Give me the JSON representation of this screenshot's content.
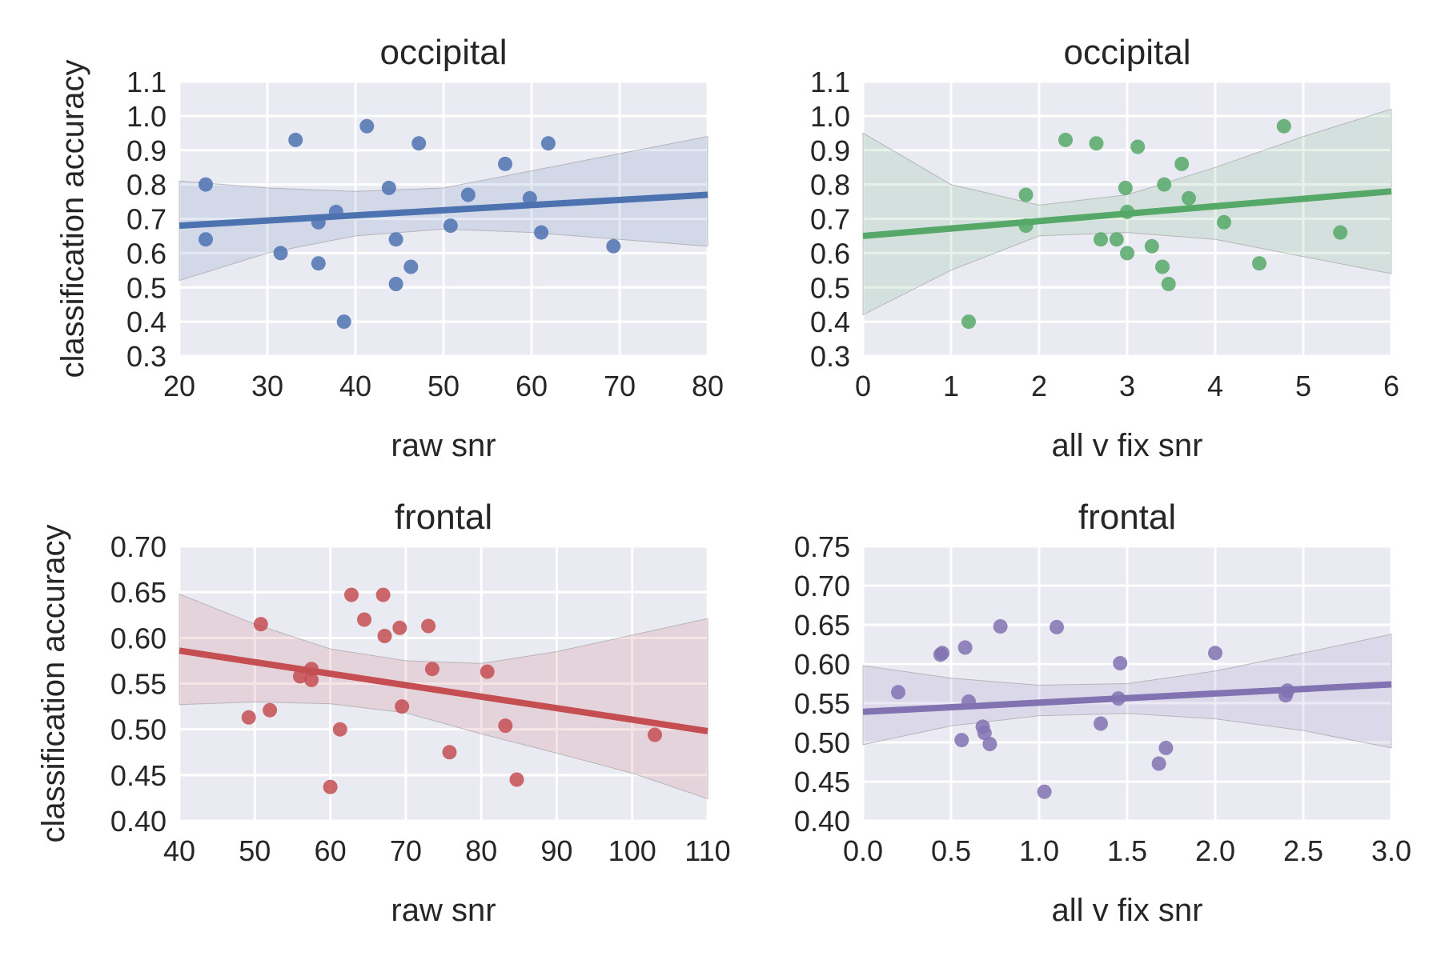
{
  "chart_data": [
    {
      "type": "scatter",
      "title": "occipital",
      "xlabel": "raw snr",
      "ylabel": "classification accuracy",
      "xlim": [
        20,
        80
      ],
      "ylim": [
        0.3,
        1.1
      ],
      "xticks": [
        "20",
        "30",
        "40",
        "50",
        "60",
        "70",
        "80"
      ],
      "yticks": [
        "0.3",
        "0.4",
        "0.5",
        "0.6",
        "0.7",
        "0.8",
        "0.9",
        "1.0",
        "1.1"
      ],
      "grid": true,
      "color": "#4C72B0",
      "points": [
        [
          23.0,
          0.8
        ],
        [
          23.0,
          0.64
        ],
        [
          31.5,
          0.6
        ],
        [
          33.2,
          0.93
        ],
        [
          35.8,
          0.57
        ],
        [
          35.8,
          0.69
        ],
        [
          37.8,
          0.72
        ],
        [
          38.7,
          0.4
        ],
        [
          41.3,
          0.97
        ],
        [
          43.8,
          0.79
        ],
        [
          44.6,
          0.64
        ],
        [
          44.6,
          0.51
        ],
        [
          46.3,
          0.56
        ],
        [
          47.2,
          0.92
        ],
        [
          50.8,
          0.68
        ],
        [
          52.8,
          0.77
        ],
        [
          57.0,
          0.86
        ],
        [
          59.8,
          0.76
        ],
        [
          61.1,
          0.66
        ],
        [
          61.9,
          0.92
        ],
        [
          69.3,
          0.62
        ]
      ],
      "fit_line": [
        [
          20,
          0.68
        ],
        [
          80,
          0.77
        ]
      ],
      "band": {
        "x": [
          20,
          30,
          40,
          50,
          60,
          70,
          80
        ],
        "lower": [
          0.52,
          0.6,
          0.65,
          0.67,
          0.66,
          0.64,
          0.62
        ],
        "upper": [
          0.81,
          0.79,
          0.78,
          0.79,
          0.84,
          0.89,
          0.94
        ]
      }
    },
    {
      "type": "scatter",
      "title": "occipital",
      "xlabel": "all v fix snr",
      "ylabel": "",
      "xlim": [
        0,
        6
      ],
      "ylim": [
        0.3,
        1.1
      ],
      "xticks": [
        "0",
        "1",
        "2",
        "3",
        "4",
        "5",
        "6"
      ],
      "yticks": [
        "0.3",
        "0.4",
        "0.5",
        "0.6",
        "0.7",
        "0.8",
        "0.9",
        "1.0",
        "1.1"
      ],
      "grid": true,
      "color": "#55A868",
      "points": [
        [
          1.2,
          0.4
        ],
        [
          1.85,
          0.77
        ],
        [
          1.85,
          0.68
        ],
        [
          2.3,
          0.93
        ],
        [
          2.65,
          0.92
        ],
        [
          2.7,
          0.64
        ],
        [
          2.88,
          0.64
        ],
        [
          2.98,
          0.79
        ],
        [
          3.0,
          0.72
        ],
        [
          3.0,
          0.6
        ],
        [
          3.12,
          0.91
        ],
        [
          3.28,
          0.62
        ],
        [
          3.4,
          0.56
        ],
        [
          3.42,
          0.8
        ],
        [
          3.47,
          0.51
        ],
        [
          3.62,
          0.86
        ],
        [
          3.7,
          0.76
        ],
        [
          4.1,
          0.69
        ],
        [
          4.5,
          0.57
        ],
        [
          4.78,
          0.97
        ],
        [
          5.42,
          0.66
        ]
      ],
      "fit_line": [
        [
          0,
          0.65
        ],
        [
          6,
          0.78
        ]
      ],
      "band": {
        "x": [
          0,
          1,
          2,
          3,
          4,
          5,
          6
        ],
        "lower": [
          0.42,
          0.55,
          0.65,
          0.66,
          0.64,
          0.59,
          0.54
        ],
        "upper": [
          0.95,
          0.8,
          0.74,
          0.77,
          0.85,
          0.94,
          1.02
        ]
      }
    },
    {
      "type": "scatter",
      "title": "frontal",
      "xlabel": "raw snr",
      "ylabel": "classification accuracy",
      "xlim": [
        40,
        110
      ],
      "ylim": [
        0.4,
        0.7
      ],
      "xticks": [
        "40",
        "50",
        "60",
        "70",
        "80",
        "90",
        "100",
        "110"
      ],
      "yticks": [
        "0.40",
        "0.45",
        "0.50",
        "0.55",
        "0.60",
        "0.65",
        "0.70"
      ],
      "grid": true,
      "color": "#C44E52",
      "points": [
        [
          49.2,
          0.513
        ],
        [
          50.8,
          0.615
        ],
        [
          52.0,
          0.521
        ],
        [
          56.0,
          0.558
        ],
        [
          57.5,
          0.566
        ],
        [
          57.5,
          0.554
        ],
        [
          60.0,
          0.437
        ],
        [
          61.3,
          0.5
        ],
        [
          62.8,
          0.647
        ],
        [
          64.5,
          0.62
        ],
        [
          67.0,
          0.647
        ],
        [
          67.2,
          0.602
        ],
        [
          69.2,
          0.611
        ],
        [
          69.5,
          0.525
        ],
        [
          73.0,
          0.613
        ],
        [
          73.5,
          0.566
        ],
        [
          75.8,
          0.475
        ],
        [
          80.8,
          0.563
        ],
        [
          83.2,
          0.504
        ],
        [
          84.7,
          0.445
        ],
        [
          103.0,
          0.494
        ]
      ],
      "fit_line": [
        [
          40,
          0.586
        ],
        [
          110,
          0.498
        ]
      ],
      "band": {
        "x": [
          40,
          50,
          60,
          70,
          80,
          90,
          100,
          110
        ],
        "lower": [
          0.527,
          0.53,
          0.528,
          0.518,
          0.495,
          0.474,
          0.452,
          0.424
        ],
        "upper": [
          0.648,
          0.615,
          0.588,
          0.575,
          0.572,
          0.585,
          0.603,
          0.621
        ]
      }
    },
    {
      "type": "scatter",
      "title": "frontal",
      "xlabel": "all v fix snr",
      "ylabel": "",
      "xlim": [
        0.0,
        3.0
      ],
      "ylim": [
        0.4,
        0.75
      ],
      "xticks": [
        "0.0",
        "0.5",
        "1.0",
        "1.5",
        "2.0",
        "2.5",
        "3.0"
      ],
      "yticks": [
        "0.40",
        "0.45",
        "0.50",
        "0.55",
        "0.60",
        "0.65",
        "0.70",
        "0.75"
      ],
      "grid": true,
      "color": "#8172B2",
      "points": [
        [
          0.2,
          0.564
        ],
        [
          0.44,
          0.612
        ],
        [
          0.45,
          0.614
        ],
        [
          0.56,
          0.503
        ],
        [
          0.58,
          0.621
        ],
        [
          0.6,
          0.552
        ],
        [
          0.68,
          0.52
        ],
        [
          0.69,
          0.512
        ],
        [
          0.72,
          0.498
        ],
        [
          0.78,
          0.648
        ],
        [
          1.03,
          0.437
        ],
        [
          1.1,
          0.647
        ],
        [
          1.35,
          0.524
        ],
        [
          1.45,
          0.556
        ],
        [
          1.46,
          0.601
        ],
        [
          1.68,
          0.473
        ],
        [
          1.72,
          0.493
        ],
        [
          2.0,
          0.614
        ],
        [
          2.4,
          0.56
        ],
        [
          2.41,
          0.566
        ]
      ],
      "fit_line": [
        [
          0,
          0.539
        ],
        [
          3.0,
          0.574
        ]
      ],
      "band": {
        "x": [
          0,
          0.5,
          1.0,
          1.5,
          2.0,
          2.5,
          3.0
        ],
        "lower": [
          0.497,
          0.521,
          0.534,
          0.537,
          0.53,
          0.515,
          0.493
        ],
        "upper": [
          0.598,
          0.582,
          0.573,
          0.575,
          0.591,
          0.614,
          0.638
        ]
      }
    }
  ]
}
